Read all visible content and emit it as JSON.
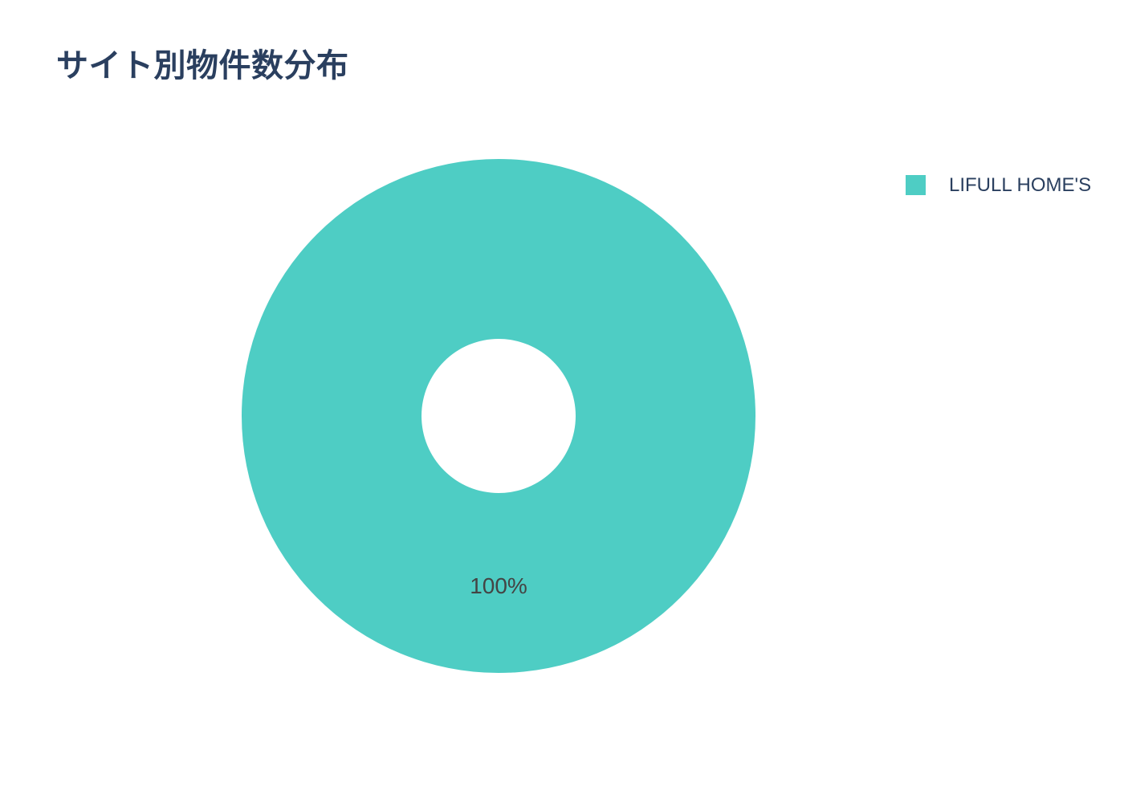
{
  "chart_data": {
    "type": "pie",
    "title": "サイト別物件数分布",
    "labels": [
      "LIFULL HOME'S"
    ],
    "values": [
      100
    ],
    "unit": "%",
    "slice_text": [
      "100%"
    ],
    "hole": 0.3,
    "colors": [
      "#4ECDC4"
    ],
    "legend_position": "right",
    "title_color": "#2a3f5f",
    "legend_text_color": "#2a3f5f",
    "slice_label_color": "#444444",
    "background_color": "#ffffff"
  }
}
